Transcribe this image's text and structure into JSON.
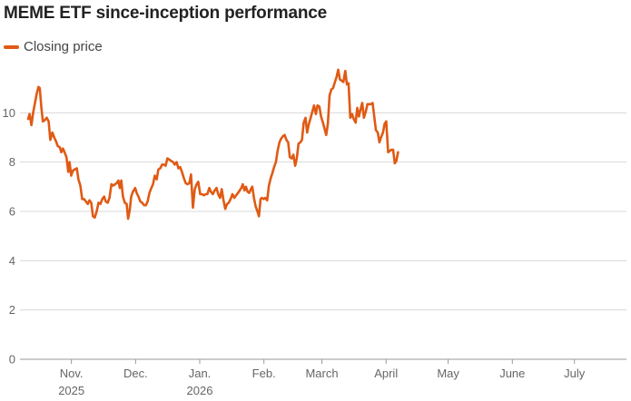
{
  "chart_data": {
    "type": "line",
    "title": "MEME ETF since-inception performance",
    "xlabel": "",
    "ylabel": "",
    "ylim": [
      0,
      12
    ],
    "yticks": [
      0,
      2,
      4,
      6,
      8,
      10
    ],
    "grid": true,
    "legend": "top-left",
    "x_ticks": [
      {
        "pos": 20.9,
        "line1": "Nov.",
        "line2": "2025"
      },
      {
        "pos": 51.9,
        "line1": "Dec.",
        "line2": ""
      },
      {
        "pos": 82.9,
        "line1": "Jan.",
        "line2": "2026"
      },
      {
        "pos": 113.9,
        "line1": "Feb.",
        "line2": ""
      },
      {
        "pos": 141.9,
        "line1": "March",
        "line2": ""
      },
      {
        "pos": 172.9,
        "line1": "April",
        "line2": ""
      },
      {
        "pos": 202.9,
        "line1": "May",
        "line2": ""
      },
      {
        "pos": 233.9,
        "line1": "June",
        "line2": ""
      },
      {
        "pos": 263.9,
        "line1": "July",
        "line2": ""
      }
    ],
    "x_range": [
      0,
      281
    ],
    "series": [
      {
        "name": "Closing price",
        "color": "#e05a14",
        "points": [
          [
            0,
            9.75
          ],
          [
            0.7,
            9.95
          ],
          [
            1.6,
            9.5
          ],
          [
            2.4,
            10.0
          ],
          [
            3.3,
            10.4
          ],
          [
            4.2,
            10.8
          ],
          [
            5.0,
            11.05
          ],
          [
            5.6,
            11.0
          ],
          [
            6.4,
            10.2
          ],
          [
            7.1,
            9.65
          ],
          [
            8.0,
            9.7
          ],
          [
            9.0,
            9.8
          ],
          [
            9.9,
            9.65
          ],
          [
            10.7,
            8.9
          ],
          [
            11.7,
            9.2
          ],
          [
            12.6,
            9.0
          ],
          [
            13.4,
            8.85
          ],
          [
            14.3,
            8.65
          ],
          [
            15.3,
            8.6
          ],
          [
            16.0,
            8.4
          ],
          [
            16.8,
            8.55
          ],
          [
            17.6,
            8.4
          ],
          [
            18.5,
            8.2
          ],
          [
            19.4,
            7.6
          ],
          [
            20.0,
            8.0
          ],
          [
            20.8,
            7.45
          ],
          [
            21.6,
            7.65
          ],
          [
            22.4,
            7.7
          ],
          [
            23.5,
            7.75
          ],
          [
            24.3,
            7.3
          ],
          [
            25.2,
            7.05
          ],
          [
            26.1,
            6.5
          ],
          [
            27.0,
            6.5
          ],
          [
            27.9,
            6.4
          ],
          [
            28.8,
            6.3
          ],
          [
            29.6,
            6.45
          ],
          [
            30.5,
            6.35
          ],
          [
            31.3,
            5.8
          ],
          [
            32.2,
            5.75
          ],
          [
            33.1,
            6.0
          ],
          [
            34.0,
            6.35
          ],
          [
            34.9,
            6.3
          ],
          [
            35.8,
            6.5
          ],
          [
            36.7,
            6.6
          ],
          [
            37.5,
            6.4
          ],
          [
            38.4,
            6.35
          ],
          [
            39.3,
            6.55
          ],
          [
            40.2,
            7.1
          ],
          [
            41.1,
            7.05
          ],
          [
            42.0,
            7.1
          ],
          [
            42.8,
            7.15
          ],
          [
            43.6,
            7.25
          ],
          [
            44.3,
            6.95
          ],
          [
            45.0,
            7.25
          ],
          [
            45.8,
            6.6
          ],
          [
            46.7,
            6.35
          ],
          [
            47.6,
            6.3
          ],
          [
            48.3,
            5.7
          ],
          [
            49.1,
            6.05
          ],
          [
            49.8,
            6.6
          ],
          [
            50.6,
            6.8
          ],
          [
            51.7,
            6.95
          ],
          [
            52.4,
            6.75
          ],
          [
            53.3,
            6.6
          ],
          [
            54.2,
            6.4
          ],
          [
            55.1,
            6.35
          ],
          [
            56.0,
            6.25
          ],
          [
            56.9,
            6.25
          ],
          [
            57.7,
            6.4
          ],
          [
            58.6,
            6.75
          ],
          [
            59.5,
            6.95
          ],
          [
            60.3,
            7.1
          ],
          [
            61.2,
            7.45
          ],
          [
            62.1,
            7.3
          ],
          [
            62.9,
            7.7
          ],
          [
            63.8,
            7.75
          ],
          [
            64.7,
            7.9
          ],
          [
            65.5,
            7.9
          ],
          [
            66.4,
            7.85
          ],
          [
            67.3,
            8.15
          ],
          [
            68.2,
            8.1
          ],
          [
            69.1,
            8.05
          ],
          [
            70.0,
            8.0
          ],
          [
            70.8,
            7.9
          ],
          [
            71.7,
            8.0
          ],
          [
            72.6,
            7.75
          ],
          [
            73.4,
            7.8
          ],
          [
            74.3,
            7.6
          ],
          [
            75.2,
            7.35
          ],
          [
            76.1,
            7.15
          ],
          [
            77.0,
            7.1
          ],
          [
            77.9,
            7.15
          ],
          [
            78.7,
            7.5
          ],
          [
            79.6,
            6.15
          ],
          [
            80.5,
            6.9
          ],
          [
            81.4,
            7.1
          ],
          [
            82.2,
            7.2
          ],
          [
            83.1,
            6.7
          ],
          [
            84.0,
            6.7
          ],
          [
            84.9,
            6.65
          ],
          [
            85.7,
            6.7
          ],
          [
            86.6,
            6.7
          ],
          [
            87.5,
            6.95
          ],
          [
            88.3,
            6.8
          ],
          [
            89.2,
            6.7
          ],
          [
            90.1,
            6.85
          ],
          [
            91.0,
            6.95
          ],
          [
            91.8,
            6.7
          ],
          [
            92.7,
            6.55
          ],
          [
            93.5,
            6.9
          ],
          [
            94.4,
            6.45
          ],
          [
            95.2,
            6.1
          ],
          [
            96.1,
            6.3
          ],
          [
            96.9,
            6.35
          ],
          [
            97.8,
            6.5
          ],
          [
            98.7,
            6.7
          ],
          [
            99.6,
            6.55
          ],
          [
            100.5,
            6.65
          ],
          [
            101.4,
            6.75
          ],
          [
            102.2,
            6.85
          ],
          [
            103.0,
            6.95
          ],
          [
            103.7,
            7.1
          ],
          [
            104.5,
            6.85
          ],
          [
            105.2,
            7.0
          ],
          [
            106.0,
            6.8
          ],
          [
            106.8,
            6.75
          ],
          [
            107.6,
            6.9
          ],
          [
            108.3,
            7.0
          ],
          [
            109.1,
            6.55
          ],
          [
            109.9,
            6.2
          ],
          [
            110.8,
            6.0
          ],
          [
            111.5,
            5.8
          ],
          [
            112.3,
            6.5
          ],
          [
            113.0,
            6.55
          ],
          [
            113.8,
            6.5
          ],
          [
            114.6,
            6.55
          ],
          [
            115.5,
            6.45
          ],
          [
            116.3,
            7.05
          ],
          [
            117.2,
            7.35
          ],
          [
            118.0,
            7.55
          ],
          [
            118.8,
            7.8
          ],
          [
            119.7,
            8.0
          ],
          [
            120.5,
            8.45
          ],
          [
            121.4,
            8.8
          ],
          [
            122.2,
            8.95
          ],
          [
            123.1,
            9.05
          ],
          [
            123.9,
            9.1
          ],
          [
            124.8,
            8.9
          ],
          [
            125.6,
            8.8
          ],
          [
            126.4,
            8.2
          ],
          [
            127.3,
            8.15
          ],
          [
            128.1,
            8.3
          ],
          [
            129.0,
            7.85
          ],
          [
            129.8,
            8.15
          ],
          [
            130.6,
            8.75
          ],
          [
            131.5,
            8.8
          ],
          [
            132.3,
            8.9
          ],
          [
            133.1,
            9.6
          ],
          [
            134.0,
            9.8
          ],
          [
            134.8,
            9.2
          ],
          [
            135.6,
            9.55
          ],
          [
            136.5,
            9.8
          ],
          [
            137.3,
            10.05
          ],
          [
            138.1,
            10.3
          ],
          [
            139.0,
            9.95
          ],
          [
            139.8,
            10.3
          ],
          [
            140.7,
            10.25
          ],
          [
            141.5,
            9.85
          ],
          [
            142.4,
            9.6
          ],
          [
            143.2,
            9.35
          ],
          [
            144.0,
            9.1
          ],
          [
            144.8,
            9.55
          ],
          [
            145.6,
            10.7
          ],
          [
            146.5,
            10.95
          ],
          [
            147.3,
            11.0
          ],
          [
            148.2,
            11.25
          ],
          [
            149.0,
            11.45
          ],
          [
            149.8,
            11.75
          ],
          [
            150.6,
            11.35
          ],
          [
            151.5,
            11.3
          ],
          [
            152.3,
            11.25
          ],
          [
            153.2,
            11.7
          ],
          [
            154.0,
            11.15
          ],
          [
            154.8,
            11.2
          ],
          [
            155.6,
            9.8
          ],
          [
            156.5,
            9.95
          ],
          [
            157.3,
            9.75
          ],
          [
            158.2,
            9.6
          ],
          [
            159.0,
            10.2
          ],
          [
            159.8,
            9.85
          ],
          [
            160.6,
            10.15
          ],
          [
            161.4,
            10.4
          ],
          [
            162.2,
            9.8
          ],
          [
            163.1,
            10.05
          ],
          [
            163.9,
            10.35
          ],
          [
            164.7,
            10.35
          ],
          [
            165.6,
            10.35
          ],
          [
            166.4,
            10.4
          ],
          [
            167.2,
            9.85
          ],
          [
            168.0,
            9.3
          ],
          [
            168.9,
            9.2
          ],
          [
            169.7,
            8.8
          ],
          [
            170.5,
            9.0
          ],
          [
            171.4,
            9.2
          ],
          [
            172.2,
            9.55
          ],
          [
            173.0,
            9.65
          ],
          [
            173.9,
            8.4
          ],
          [
            174.7,
            8.45
          ],
          [
            175.5,
            8.5
          ],
          [
            176.3,
            8.5
          ],
          [
            177.1,
            7.95
          ],
          [
            177.9,
            8.05
          ],
          [
            178.7,
            8.4
          ]
        ]
      }
    ]
  }
}
